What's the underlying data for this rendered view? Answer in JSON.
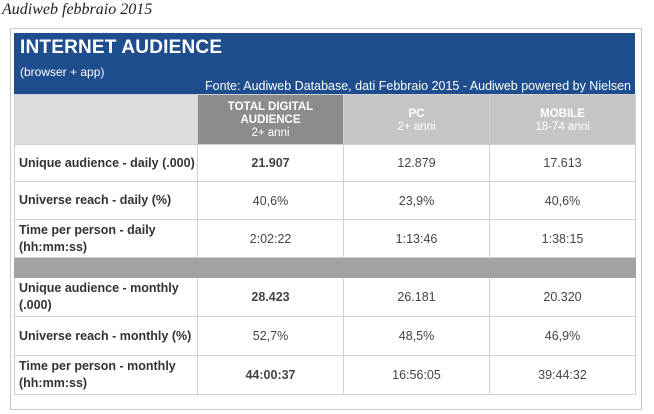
{
  "caption": "Audiweb febbraio 2015",
  "banner": {
    "title": "INTERNET AUDIENCE",
    "subtitle": "(browser + app)",
    "source": "Fonte: Audiweb Database, dati Febbraio 2015 - Audiweb powered by Nielsen"
  },
  "columns": [
    {
      "line1": "TOTAL DIGITAL",
      "line2": "AUDIENCE",
      "line3": "2+ anni"
    },
    {
      "line1": "PC",
      "line2": "2+ anni"
    },
    {
      "line1": "MOBILE",
      "line2": "18-74 anni"
    }
  ],
  "daily": [
    {
      "label": "Unique audience - daily (.000)",
      "values": [
        "21.907",
        "12.879",
        "17.613"
      ]
    },
    {
      "label": "Universe reach - daily (%)",
      "values": [
        "40,6%",
        "23,9%",
        "40,6%"
      ]
    },
    {
      "label": "Time per person - daily (hh:mm:ss)",
      "values": [
        "2:02:22",
        "1:13:46",
        "1:38:15"
      ]
    }
  ],
  "monthly": [
    {
      "label": "Unique audience - monthly (.000)",
      "values": [
        "28.423",
        "26.181",
        "20.320"
      ]
    },
    {
      "label": "Universe reach - monthly (%)",
      "values": [
        "52,7%",
        "48,5%",
        "46,9%"
      ]
    },
    {
      "label": "Time per person - monthly (hh:mm:ss)",
      "values": [
        "44:00:37",
        "16:56:05",
        "39:44:32"
      ]
    }
  ]
}
